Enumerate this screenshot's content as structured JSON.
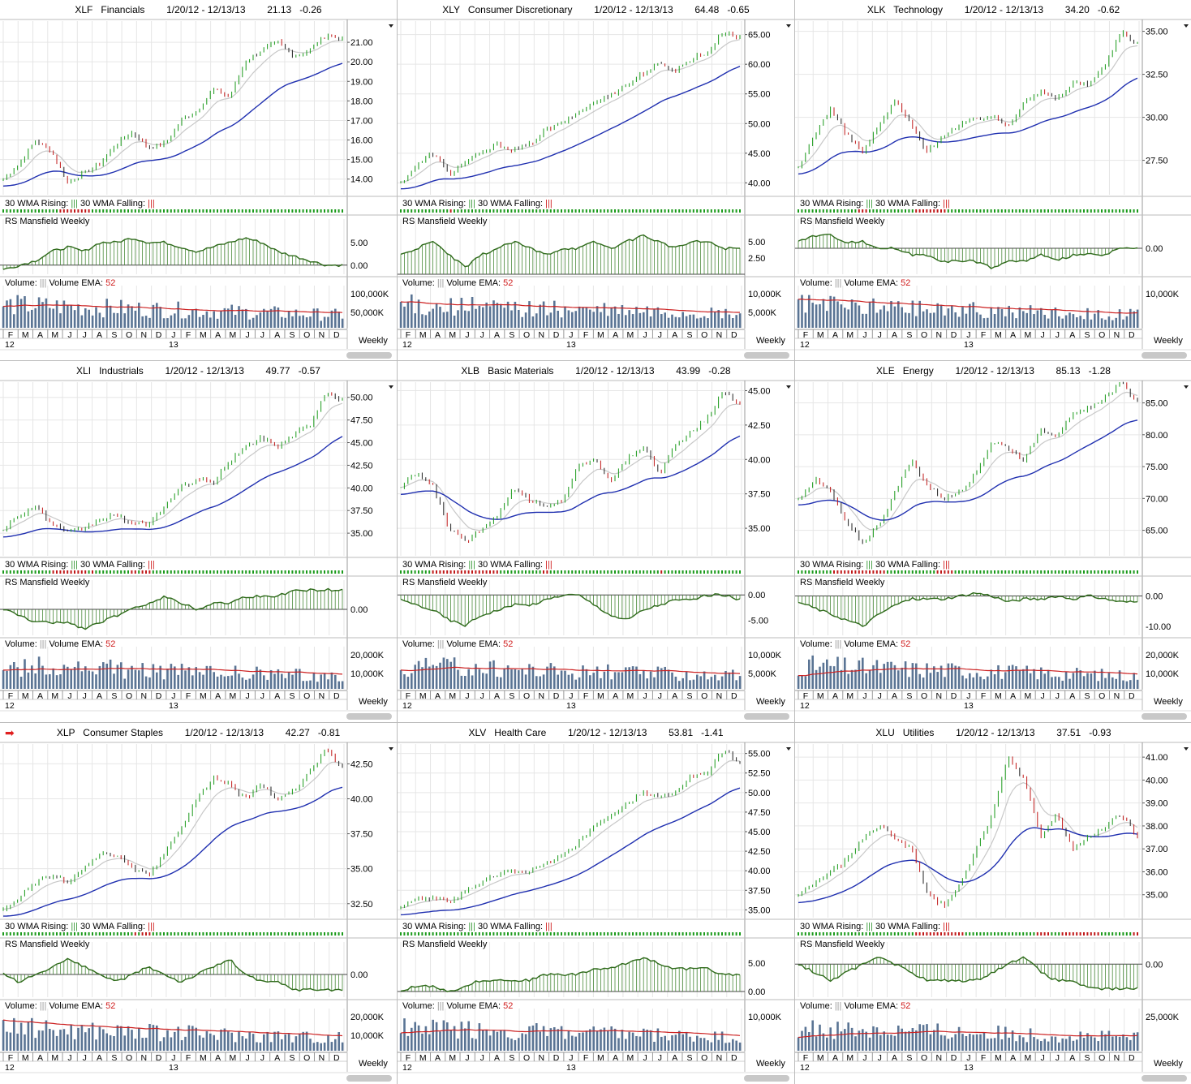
{
  "panels": [
    {
      "symbol": "XLF",
      "name": "Financials",
      "range": "1/20/12 - 12/13/13",
      "last": "21.13",
      "change": "-0.26",
      "price_ticks": [
        "21.00",
        "20.00",
        "19.00",
        "18.00",
        "17.00",
        "16.00",
        "15.00",
        "14.00"
      ],
      "rs_ticks": [
        "5.00",
        "0.00"
      ],
      "vol_ticks": [
        "100,000K",
        "50,000K"
      ]
    },
    {
      "symbol": "XLY",
      "name": "Consumer Discretionary",
      "range": "1/20/12 - 12/13/13",
      "last": "64.48",
      "change": "-0.65",
      "price_ticks": [
        "65.00",
        "60.00",
        "55.00",
        "50.00",
        "45.00",
        "40.00"
      ],
      "rs_ticks": [
        "5.00",
        "2.50"
      ],
      "vol_ticks": [
        "10,000K",
        "5,000K"
      ]
    },
    {
      "symbol": "XLK",
      "name": "Technology",
      "range": "1/20/12 - 12/13/13",
      "last": "34.20",
      "change": "-0.62",
      "price_ticks": [
        "35.00",
        "32.50",
        "30.00",
        "27.50"
      ],
      "rs_ticks": [
        "0.00"
      ],
      "vol_ticks": [
        "10,000K"
      ]
    },
    {
      "symbol": "XLI",
      "name": "Industrials",
      "range": "1/20/12 - 12/13/13",
      "last": "49.77",
      "change": "-0.57",
      "price_ticks": [
        "50.00",
        "47.50",
        "45.00",
        "42.50",
        "40.00",
        "37.50",
        "35.00"
      ],
      "rs_ticks": [
        "0.00"
      ],
      "vol_ticks": [
        "20,000K",
        "10,000K"
      ]
    },
    {
      "symbol": "XLB",
      "name": "Basic Materials",
      "range": "1/20/12 - 12/13/13",
      "last": "43.99",
      "change": "-0.28",
      "price_ticks": [
        "45.00",
        "42.50",
        "40.00",
        "37.50",
        "35.00"
      ],
      "rs_ticks": [
        "0.00",
        "-5.00"
      ],
      "vol_ticks": [
        "10,000K",
        "5,000K"
      ]
    },
    {
      "symbol": "XLE",
      "name": "Energy",
      "range": "1/20/12 - 12/13/13",
      "last": "85.13",
      "change": "-1.28",
      "price_ticks": [
        "85.00",
        "80.00",
        "75.00",
        "70.00",
        "65.00"
      ],
      "rs_ticks": [
        "0.00",
        "-10.00"
      ],
      "vol_ticks": [
        "20,000K",
        "10,000K"
      ]
    },
    {
      "symbol": "XLP",
      "name": "Consumer Staples",
      "range": "1/20/12 - 12/13/13",
      "last": "42.27",
      "change": "-0.81",
      "price_ticks": [
        "42.50",
        "40.00",
        "37.50",
        "35.00",
        "32.50"
      ],
      "rs_ticks": [
        "0.00"
      ],
      "vol_ticks": [
        "20,000K",
        "10,000K"
      ],
      "flag": "arrow"
    },
    {
      "symbol": "XLV",
      "name": "Health Care",
      "range": "1/20/12 - 12/13/13",
      "last": "53.81",
      "change": "-1.41",
      "price_ticks": [
        "55.00",
        "52.50",
        "50.00",
        "47.50",
        "45.00",
        "42.50",
        "40.00",
        "37.50",
        "35.00"
      ],
      "rs_ticks": [
        "5.00",
        "0.00"
      ],
      "vol_ticks": [
        "10,000K"
      ]
    },
    {
      "symbol": "XLU",
      "name": "Utilities",
      "range": "1/20/12 - 12/13/13",
      "last": "37.51",
      "change": "-0.93",
      "price_ticks": [
        "41.00",
        "40.00",
        "39.00",
        "38.00",
        "37.00",
        "36.00",
        "35.00"
      ],
      "rs_ticks": [
        "0.00"
      ],
      "vol_ticks": [
        "25,000K"
      ]
    }
  ],
  "common": {
    "wma_rising": "30 WMA Rising:",
    "wma_falling": "30 WMA Falling:",
    "rs_title": "RS Mansfield Weekly",
    "volume": "Volume:",
    "volume_ema": "Volume EMA:",
    "ema_len": "52",
    "period": "Weekly",
    "bar_glyph": "|||",
    "months": [
      "F",
      "M",
      "A",
      "M",
      "J",
      "J",
      "A",
      "S",
      "O",
      "N",
      "D",
      "J",
      "F",
      "M",
      "A",
      "M",
      "J",
      "J",
      "A",
      "S",
      "O",
      "N",
      "D"
    ],
    "years": [
      "12",
      "13"
    ]
  },
  "colors": {
    "grid": "#e6e6e6",
    "ma_fast": "#c8c8c8",
    "ma_slow": "#2030b0",
    "rs": "#2e6a1a",
    "volume": "#5a7494",
    "ema": "#cc2020",
    "up": "#1a9a1a",
    "down": "#c01818"
  },
  "chart_data": [
    {
      "type": "line",
      "symbol": "XLF",
      "x_range": [
        "1/20/12",
        "12/13/13"
      ],
      "ylim": [
        13.2,
        22.0
      ],
      "close": [
        14.0,
        14.8,
        16.0,
        15.4,
        13.8,
        14.3,
        14.8,
        15.8,
        16.4,
        15.6,
        15.8,
        17.0,
        17.5,
        18.6,
        18.2,
        20.0,
        20.6,
        21.0,
        20.3,
        20.6,
        21.4,
        21.13
      ],
      "rs_ylim": [
        -2,
        8
      ],
      "rs": [
        -1,
        0,
        1,
        3,
        4,
        3,
        5,
        5,
        6,
        5,
        5,
        4,
        3,
        4,
        5,
        6,
        5,
        3,
        2,
        1,
        0,
        0
      ]
    },
    {
      "type": "line",
      "symbol": "XLY",
      "x_range": [
        "1/20/12",
        "12/13/13"
      ],
      "ylim": [
        38,
        67
      ],
      "close": [
        40,
        43,
        45,
        41.5,
        43.5,
        45,
        46.5,
        45.5,
        46.5,
        49,
        50,
        52,
        53.5,
        55,
        56.5,
        58.5,
        60,
        59,
        61,
        62,
        65.5,
        64.48
      ],
      "rs_ylim": [
        0,
        7
      ],
      "rs": [
        3,
        4,
        5,
        3,
        1,
        3,
        4,
        5,
        4,
        3,
        4,
        4,
        5,
        4,
        5,
        6,
        5,
        4,
        5,
        5,
        4,
        4
      ]
    },
    {
      "type": "line",
      "symbol": "XLK",
      "x_range": [
        "1/20/12",
        "12/13/13"
      ],
      "ylim": [
        25.5,
        35.5
      ],
      "close": [
        27,
        29,
        30.5,
        29,
        28,
        29.5,
        31,
        29.5,
        28,
        29,
        29.5,
        30,
        30,
        29.5,
        31,
        31.5,
        31,
        32,
        32,
        33,
        35,
        34.2
      ],
      "rs_ylim": [
        -4,
        3
      ],
      "rs": [
        1,
        2,
        2,
        1,
        1,
        0,
        0,
        -1,
        -1,
        -2,
        -2,
        -2,
        -3,
        -2,
        -2,
        -1,
        -2,
        -1,
        -1,
        -1,
        0,
        0
      ]
    },
    {
      "type": "line",
      "symbol": "XLI",
      "x_range": [
        "1/20/12",
        "12/13/13"
      ],
      "ylim": [
        32.5,
        51.5
      ],
      "close": [
        35.5,
        37,
        38,
        36,
        35,
        35.5,
        36.5,
        37,
        36,
        36,
        38,
        40,
        41,
        40.5,
        43,
        44.5,
        45.5,
        44.5,
        46,
        47,
        50.5,
        49.77
      ],
      "rs_ylim": [
        -4,
        3
      ],
      "rs": [
        0,
        -1,
        -2,
        -2,
        -2,
        -3,
        -2,
        -1,
        0,
        1,
        2,
        1,
        0,
        1,
        1,
        2,
        2,
        2,
        3,
        3,
        3,
        3
      ]
    },
    {
      "type": "line",
      "symbol": "XLB",
      "x_range": [
        "1/20/12",
        "12/13/13"
      ],
      "ylim": [
        33,
        45.5
      ],
      "close": [
        38,
        39,
        38,
        35,
        34,
        35,
        36,
        38,
        37,
        36.5,
        37,
        39.5,
        40,
        38.5,
        40,
        41,
        39,
        41,
        42,
        43,
        45,
        43.99
      ],
      "rs_ylim": [
        -8,
        1
      ],
      "rs": [
        -1,
        -2,
        -3,
        -5,
        -6,
        -4,
        -3,
        -2,
        -2,
        -1,
        0,
        0,
        -2,
        -4,
        -5,
        -3,
        -2,
        -1,
        -1,
        0,
        0,
        -1
      ]
    },
    {
      "type": "line",
      "symbol": "XLE",
      "x_range": [
        "1/20/12",
        "12/13/13"
      ],
      "ylim": [
        61,
        88
      ],
      "close": [
        70,
        73,
        71,
        66,
        63,
        66,
        71,
        76,
        72,
        70,
        71,
        74,
        79,
        78,
        76,
        81,
        80,
        83,
        84,
        86,
        88,
        85.13
      ],
      "rs_ylim": [
        -13,
        2
      ],
      "rs": [
        -2,
        -4,
        -6,
        -8,
        -10,
        -6,
        -3,
        -1,
        -1,
        -1,
        0,
        1,
        0,
        -2,
        -1,
        -1,
        0,
        -1,
        0,
        -1,
        -2,
        -2
      ]
    },
    {
      "type": "line",
      "symbol": "XLP",
      "x_range": [
        "1/20/12",
        "12/13/13"
      ],
      "ylim": [
        31.5,
        43.8
      ],
      "close": [
        32,
        33,
        34,
        34.5,
        34,
        35,
        36,
        36,
        35,
        34.5,
        36,
        38,
        40,
        41.5,
        41,
        40,
        41,
        40,
        40.5,
        42,
        43.5,
        42.27
      ],
      "rs_ylim": [
        -3,
        3
      ],
      "rs": [
        0,
        -1,
        0,
        1,
        2,
        1,
        0,
        -1,
        0,
        1,
        0,
        -1,
        0,
        1,
        2,
        0,
        -1,
        -1,
        -2,
        -2,
        -2,
        -2
      ]
    },
    {
      "type": "line",
      "symbol": "XLV",
      "x_range": [
        "1/20/12",
        "12/13/13"
      ],
      "ylim": [
        34,
        56
      ],
      "close": [
        35.5,
        36.5,
        36.5,
        36,
        37.5,
        38.5,
        39.5,
        40,
        40,
        41,
        42,
        43.5,
        46,
        47,
        48.5,
        50,
        49.5,
        50,
        52,
        52.5,
        55.5,
        53.81
      ],
      "rs_ylim": [
        -1,
        7
      ],
      "rs": [
        0,
        1,
        1,
        0,
        1,
        2,
        2,
        2,
        2,
        3,
        3,
        3,
        4,
        4,
        5,
        6,
        5,
        4,
        4,
        4,
        3,
        3
      ]
    },
    {
      "type": "line",
      "symbol": "XLU",
      "x_range": [
        "1/20/12",
        "12/13/13"
      ],
      "ylim": [
        34,
        41.5
      ],
      "close": [
        35,
        35.5,
        36,
        36.5,
        37.5,
        38,
        37.5,
        37,
        35,
        34.5,
        35.5,
        37,
        38.5,
        41,
        40,
        37.5,
        38.5,
        37,
        37.5,
        38,
        38.5,
        37.51
      ],
      "rs_ylim": [
        -4,
        1.5
      ],
      "rs": [
        0,
        -1,
        -2,
        -1,
        0,
        1,
        0,
        -1,
        -2,
        -2,
        -2,
        -2,
        -1,
        0,
        1,
        -1,
        -2,
        -2,
        -3,
        -3,
        -3,
        -3
      ]
    }
  ]
}
